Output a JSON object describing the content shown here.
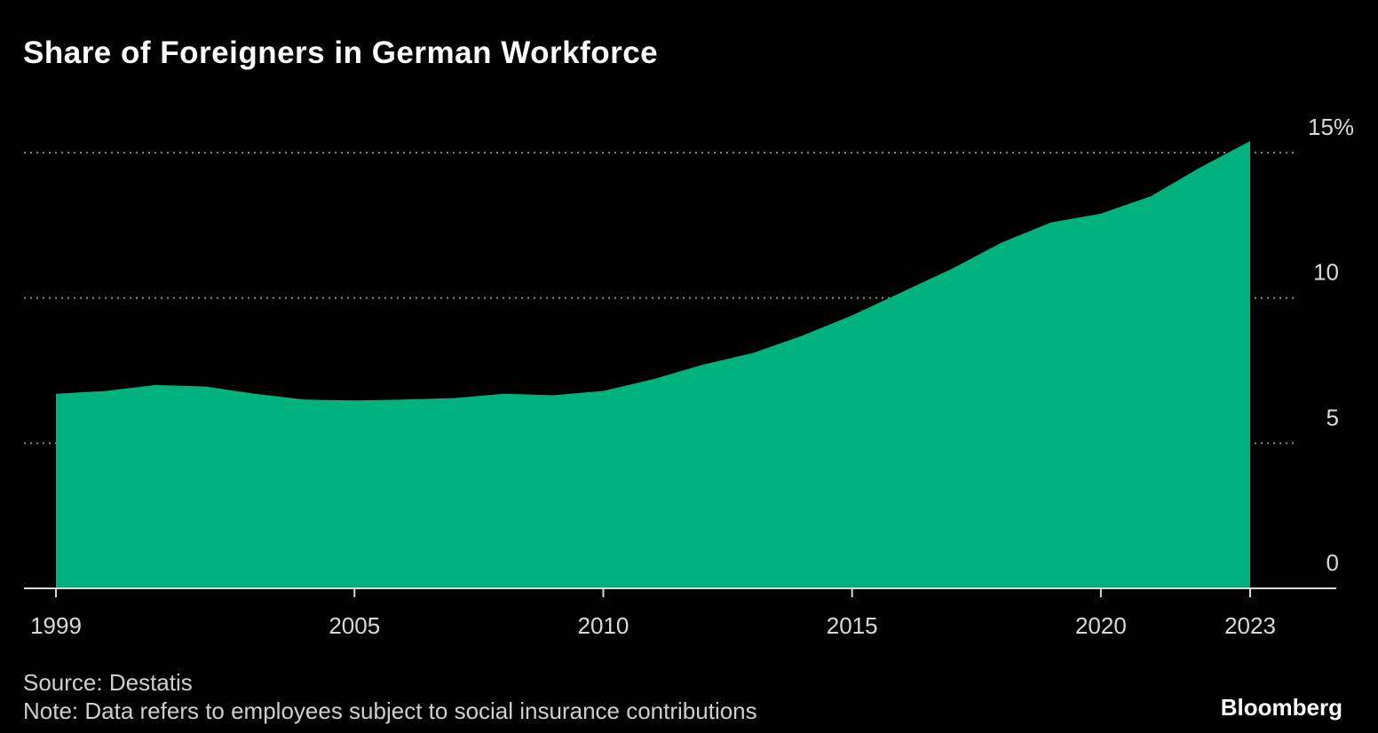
{
  "title": "Share of Foreigners in German Workforce",
  "footer": {
    "source": "Source: Destatis",
    "note": "Note: Data refers to employees subject to social insurance contributions",
    "brand": "Bloomberg"
  },
  "chart_data": {
    "type": "area",
    "title": "Share of Foreigners in German Workforce",
    "xlabel": "",
    "ylabel": "",
    "x": [
      1999,
      2000,
      2001,
      2002,
      2003,
      2004,
      2005,
      2006,
      2007,
      2008,
      2009,
      2010,
      2011,
      2012,
      2013,
      2014,
      2015,
      2016,
      2017,
      2018,
      2019,
      2020,
      2021,
      2022,
      2023
    ],
    "series": [
      {
        "name": "Share of foreigners",
        "values": [
          6.7,
          6.8,
          7.0,
          6.95,
          6.7,
          6.5,
          6.47,
          6.5,
          6.55,
          6.7,
          6.65,
          6.8,
          7.2,
          7.7,
          8.1,
          8.7,
          9.4,
          10.2,
          11.0,
          11.9,
          12.6,
          12.9,
          13.5,
          14.5,
          15.4
        ]
      }
    ],
    "x_ticks": [
      1999,
      2005,
      2010,
      2015,
      2020,
      2023
    ],
    "x_tick_labels": [
      "1999",
      "2005",
      "2010",
      "2015",
      "2020",
      "2023"
    ],
    "y_ticks": [
      0,
      5,
      10,
      15
    ],
    "y_tick_labels": [
      "0",
      "5",
      "10",
      "15%"
    ],
    "ylim": [
      0,
      15.4
    ],
    "grid": "horizontal dotted",
    "y_axis_side": "right",
    "colors": {
      "area": "#00b37e",
      "background": "#000000",
      "grid": "#8a8a8a",
      "axis": "#d9d9d9"
    }
  }
}
